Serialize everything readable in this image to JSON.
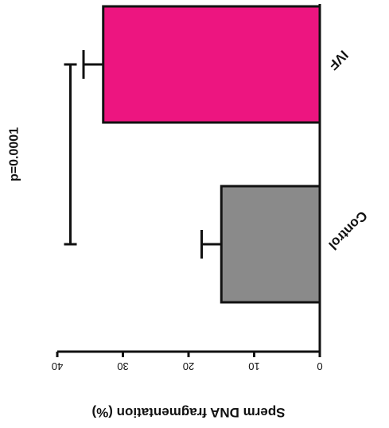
{
  "chart_data": {
    "type": "bar",
    "orientation": "horizontal",
    "rendered_rotated_180": true,
    "categories": [
      "Control",
      "IVF"
    ],
    "values": [
      15,
      33
    ],
    "errors": [
      3,
      3
    ],
    "colors": [
      "#8a8a8a",
      "#ed1580"
    ],
    "ylabel": "Sperm DNA fragmentation (%)",
    "xlim": [
      0,
      40
    ],
    "ticks": [
      0,
      10,
      20,
      30,
      40
    ],
    "tick_labels": [
      "0",
      "10",
      "20",
      "30",
      "40"
    ],
    "grid": false,
    "annotations": [
      {
        "text": "p=0.0001",
        "between": [
          "Control",
          "IVF"
        ]
      }
    ]
  }
}
